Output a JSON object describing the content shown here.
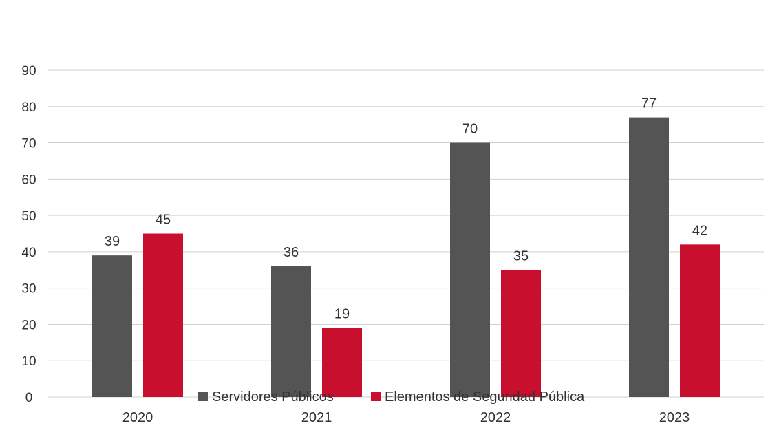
{
  "chart_data": {
    "type": "bar",
    "title": "",
    "xlabel": "",
    "ylabel": "",
    "categories": [
      "2020",
      "2021",
      "2022",
      "2023"
    ],
    "series": [
      {
        "name": "Servidores Públicos",
        "values": [
          39,
          36,
          70,
          77
        ],
        "color": "#545454"
      },
      {
        "name": "Elementos de Seguridad Pública",
        "values": [
          45,
          19,
          35,
          42
        ],
        "color": "#c8102e"
      }
    ],
    "ylim": [
      0,
      90
    ],
    "yticks": [
      "0",
      "10",
      "20",
      "30",
      "40",
      "50",
      "60",
      "70",
      "80",
      "90"
    ],
    "grid": true,
    "legend_position": "bottom"
  }
}
